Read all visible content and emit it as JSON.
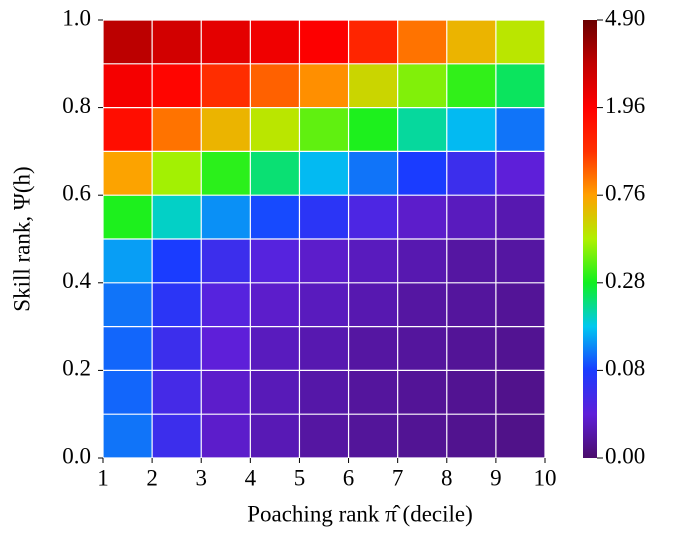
{
  "chart_data": {
    "type": "heatmap",
    "xlabel": "Poaching rank π̂ (decile)",
    "ylabel": "Skill rank, Ψ(h)",
    "xbins": [
      1,
      2,
      3,
      4,
      5,
      6,
      7,
      8,
      9,
      10
    ],
    "ybins": [
      0,
      0.1,
      0.2,
      0.3,
      0.4,
      0.5,
      0.6,
      0.7,
      0.8,
      0.9,
      1.0
    ],
    "z": [
      [
        0.12,
        0.06,
        0.035,
        0.027,
        0.02,
        0.017,
        0.015,
        0.013,
        0.011
      ],
      [
        0.11,
        0.055,
        0.035,
        0.028,
        0.022,
        0.018,
        0.016,
        0.014,
        0.012
      ],
      [
        0.11,
        0.06,
        0.04,
        0.03,
        0.025,
        0.02,
        0.018,
        0.016,
        0.014
      ],
      [
        0.12,
        0.07,
        0.045,
        0.035,
        0.03,
        0.025,
        0.02,
        0.018,
        0.016
      ],
      [
        0.15,
        0.08,
        0.06,
        0.045,
        0.035,
        0.03,
        0.025,
        0.02,
        0.02
      ],
      [
        0.3,
        0.2,
        0.14,
        0.09,
        0.07,
        0.05,
        0.035,
        0.03,
        0.025
      ],
      [
        0.75,
        0.5,
        0.32,
        0.24,
        0.17,
        0.12,
        0.08,
        0.06,
        0.04
      ],
      [
        1.8,
        1.0,
        0.7,
        0.55,
        0.4,
        0.3,
        0.22,
        0.17,
        0.12
      ],
      [
        2.2,
        1.9,
        1.4,
        1.1,
        0.85,
        0.6,
        0.45,
        0.33,
        0.25
      ],
      [
        3.5,
        3.0,
        2.6,
        2.3,
        2.0,
        1.5,
        1.0,
        0.7,
        0.55
      ]
    ],
    "xlim": [
      1,
      10
    ],
    "ylim": [
      0,
      1.0
    ],
    "xticks": [
      1,
      2,
      3,
      4,
      5,
      6,
      7,
      8,
      9,
      10
    ],
    "yticks": [
      {
        "value": 0,
        "label": "0.0"
      },
      {
        "value": 0.2,
        "label": "0.2"
      },
      {
        "value": 0.4,
        "label": "0.4"
      },
      {
        "value": 0.6,
        "label": "0.6"
      },
      {
        "value": 0.8,
        "label": "0.8"
      },
      {
        "value": 1.0,
        "label": "1.0"
      }
    ],
    "clim": [
      0,
      4.9
    ],
    "cticks": [
      {
        "value": 0,
        "label": "0.00"
      },
      {
        "value": 0.08,
        "label": "0.08"
      },
      {
        "value": 0.28,
        "label": "0.28"
      },
      {
        "value": 0.76,
        "label": "0.76"
      },
      {
        "value": 1.96,
        "label": "1.96"
      },
      {
        "value": 4.9,
        "label": "4.90"
      }
    ],
    "colormap": [
      "#4b0d6b",
      "#5e1fd9",
      "#1a3cff",
      "#00c8f0",
      "#10f020",
      "#b0f000",
      "#ffa000",
      "#ff3000",
      "#ff0000",
      "#c00000",
      "#6a0000"
    ],
    "grid": true
  }
}
